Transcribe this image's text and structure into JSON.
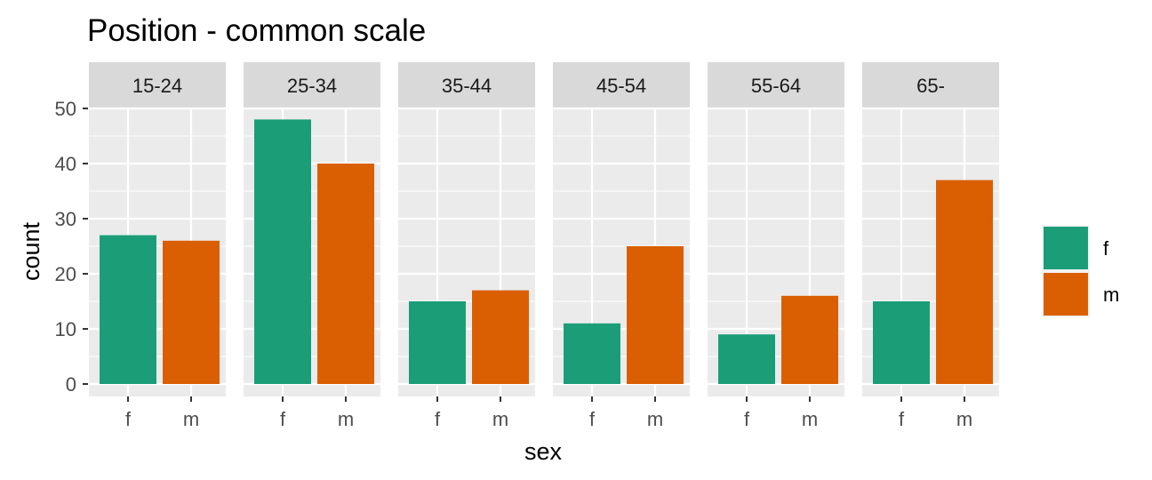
{
  "chart_data": {
    "type": "bar",
    "title": "Position - common scale",
    "xlabel": "sex",
    "ylabel": "count",
    "ylim": [
      0,
      50
    ],
    "yticks": [
      0,
      10,
      20,
      30,
      40,
      50
    ],
    "facets": [
      {
        "label": "15-24",
        "categories": [
          "f",
          "m"
        ],
        "values": [
          27,
          26
        ]
      },
      {
        "label": "25-34",
        "categories": [
          "f",
          "m"
        ],
        "values": [
          48,
          40
        ]
      },
      {
        "label": "35-44",
        "categories": [
          "f",
          "m"
        ],
        "values": [
          15,
          17
        ]
      },
      {
        "label": "45-54",
        "categories": [
          "f",
          "m"
        ],
        "values": [
          11,
          25
        ]
      },
      {
        "label": "55-64",
        "categories": [
          "f",
          "m"
        ],
        "values": [
          9,
          16
        ]
      },
      {
        "label": "65-",
        "categories": [
          "f",
          "m"
        ],
        "values": [
          15,
          37
        ]
      }
    ],
    "legend": {
      "position": "right",
      "entries": [
        {
          "label": "f",
          "color": "#1b9e77"
        },
        {
          "label": "m",
          "color": "#d95f02"
        }
      ]
    },
    "grid": true,
    "colors": {
      "f": "#1b9e77",
      "m": "#d95f02",
      "panel": "#ebebeb",
      "strip": "#d9d9d9"
    }
  }
}
